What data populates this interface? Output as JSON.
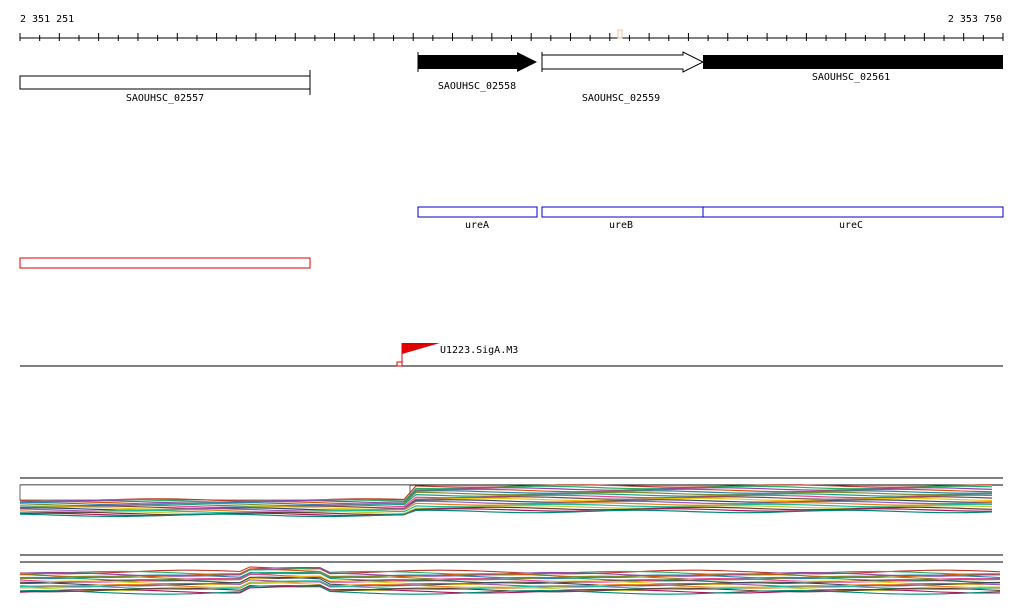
{
  "ruler": {
    "start": "2 351 251",
    "end": "2 353 750"
  },
  "genes": [
    "SAOUHSC_02557",
    "SAOUHSC_02558",
    "SAOUHSC_02559",
    "SAOUHSC_02561"
  ],
  "gene_names": [
    "ureA",
    "ureB",
    "ureC"
  ],
  "promoter": {
    "label": "U1223.SigA.M3"
  }
}
